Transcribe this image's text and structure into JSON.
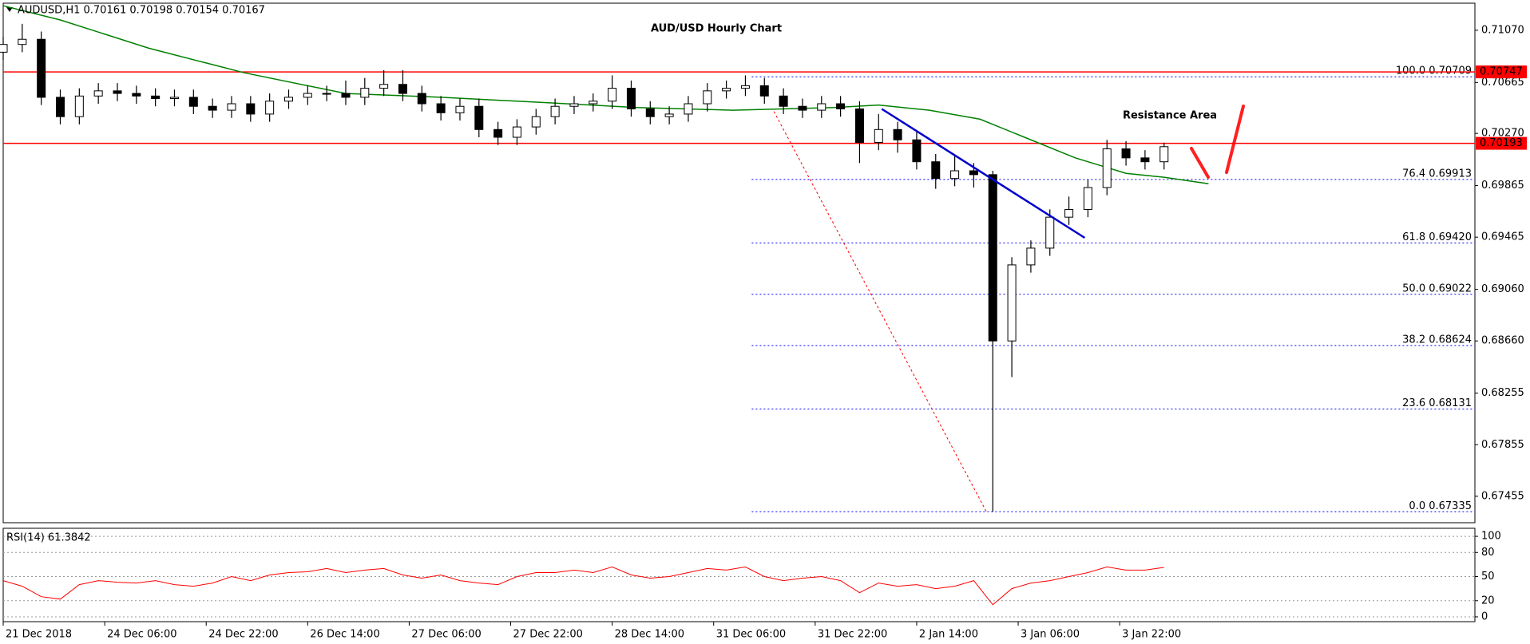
{
  "chart_data": [
    {
      "type": "candlestick",
      "title": "AUD/USD Hourly Chart",
      "subtitle": "AUDUSD,H1  0.70161 0.70198 0.70154 0.70167",
      "annotation": "Resistance Area",
      "up_color": "#ffffff",
      "down_color": "#000000",
      "outline_color": "#000000",
      "x": [
        0,
        3,
        6,
        9,
        12,
        15,
        18,
        21,
        24,
        27,
        30,
        33,
        36,
        39,
        42,
        45,
        48,
        51,
        54,
        57,
        60,
        63,
        66,
        69,
        72,
        75,
        78,
        81,
        84,
        87,
        90,
        93,
        96,
        99,
        102,
        105,
        108,
        111,
        114,
        117,
        120,
        123,
        126,
        129,
        132,
        135,
        138,
        141,
        144,
        147,
        150,
        153,
        156,
        159,
        162,
        165,
        168,
        171,
        174,
        177,
        180,
        183
      ],
      "open": [
        0.709,
        0.7096,
        0.71,
        0.7055,
        0.704,
        0.7056,
        0.706,
        0.7058,
        0.7056,
        0.7054,
        0.7055,
        0.7048,
        0.7045,
        0.705,
        0.7042,
        0.7052,
        0.7055,
        0.7058,
        0.7058,
        0.7055,
        0.7062,
        0.7065,
        0.7058,
        0.705,
        0.7043,
        0.7048,
        0.703,
        0.7024,
        0.7032,
        0.704,
        0.7048,
        0.705,
        0.7052,
        0.7062,
        0.7046,
        0.704,
        0.7042,
        0.705,
        0.706,
        0.7062,
        0.7064,
        0.7056,
        0.7048,
        0.7045,
        0.705,
        0.7046,
        0.702,
        0.703,
        0.7022,
        0.7005,
        0.6992,
        0.6998,
        0.6995,
        0.6866,
        0.6925,
        0.6938,
        0.6962,
        0.6968,
        0.6985,
        0.7015,
        0.7008,
        0.7005
      ],
      "high": [
        0.7102,
        0.7112,
        0.7106,
        0.7061,
        0.7062,
        0.7066,
        0.7066,
        0.7064,
        0.7062,
        0.7061,
        0.7061,
        0.7054,
        0.7056,
        0.7056,
        0.7058,
        0.7061,
        0.7064,
        0.7064,
        0.7068,
        0.707,
        0.7076,
        0.7076,
        0.7064,
        0.7056,
        0.7054,
        0.7054,
        0.7036,
        0.7038,
        0.7046,
        0.7054,
        0.7056,
        0.7058,
        0.7072,
        0.7068,
        0.7052,
        0.7048,
        0.7056,
        0.7066,
        0.7068,
        0.7072,
        0.707,
        0.7062,
        0.7054,
        0.7056,
        0.7056,
        0.7052,
        0.7042,
        0.7036,
        0.7028,
        0.7011,
        0.701,
        0.7004,
        0.6998,
        0.6931,
        0.6944,
        0.6968,
        0.6978,
        0.6991,
        0.7022,
        0.7021,
        0.7014,
        0.70198
      ],
      "low": [
        0.7084,
        0.709,
        0.7049,
        0.7034,
        0.7034,
        0.705,
        0.7052,
        0.705,
        0.7048,
        0.7048,
        0.7042,
        0.7039,
        0.7039,
        0.7036,
        0.7036,
        0.7046,
        0.7049,
        0.7052,
        0.7049,
        0.7049,
        0.7056,
        0.7052,
        0.7044,
        0.7037,
        0.7037,
        0.7024,
        0.7018,
        0.7018,
        0.7026,
        0.7034,
        0.7042,
        0.7044,
        0.7046,
        0.704,
        0.7034,
        0.7034,
        0.7036,
        0.7044,
        0.7054,
        0.7056,
        0.705,
        0.7042,
        0.7039,
        0.7039,
        0.704,
        0.7004,
        0.7014,
        0.7012,
        0.6999,
        0.6984,
        0.6986,
        0.6985,
        0.67335,
        0.6838,
        0.6919,
        0.6932,
        0.6956,
        0.6962,
        0.6979,
        0.7002,
        0.6999,
        0.6999
      ],
      "close": [
        0.7096,
        0.71,
        0.7055,
        0.704,
        0.7056,
        0.706,
        0.7058,
        0.7056,
        0.7054,
        0.7055,
        0.7048,
        0.7045,
        0.705,
        0.7042,
        0.7052,
        0.7055,
        0.7058,
        0.7058,
        0.7055,
        0.7062,
        0.7065,
        0.7058,
        0.705,
        0.7043,
        0.7048,
        0.703,
        0.7024,
        0.7032,
        0.704,
        0.7048,
        0.705,
        0.7052,
        0.7062,
        0.7046,
        0.704,
        0.7042,
        0.705,
        0.706,
        0.7062,
        0.7064,
        0.7056,
        0.7048,
        0.7045,
        0.705,
        0.7046,
        0.702,
        0.703,
        0.7022,
        0.7005,
        0.6992,
        0.6998,
        0.6995,
        0.6866,
        0.6925,
        0.6938,
        0.6962,
        0.6968,
        0.6985,
        0.7015,
        0.7008,
        0.7005,
        0.70167
      ],
      "moving_average": {
        "color": "#008000",
        "x": [
          0,
          9,
          23,
          38,
          54,
          69,
          85,
          100,
          115,
          131,
          138,
          146,
          154,
          161,
          169,
          177,
          183,
          190
        ],
        "values": [
          0.7126,
          0.7115,
          0.7093,
          0.7074,
          0.7058,
          0.7055,
          0.7051,
          0.7047,
          0.7045,
          0.7047,
          0.7049,
          0.7045,
          0.7038,
          0.7024,
          0.7008,
          0.6996,
          0.6993,
          0.6988
        ]
      },
      "levels": [
        {
          "value": 0.70747,
          "color": "#ff0000"
        },
        {
          "value": 0.70193,
          "color": "#ff0000"
        }
      ],
      "fibonacci": {
        "color": "#0000ff",
        "x_start": 118,
        "levels": [
          {
            "value": 0.70709,
            "label": "100.0 0.70709"
          },
          {
            "value": 0.69913,
            "label": "76.4 0.69913"
          },
          {
            "value": 0.6942,
            "label": "61.8 0.69420"
          },
          {
            "value": 0.69022,
            "label": "50.0 0.69022"
          },
          {
            "value": 0.68624,
            "label": "38.2 0.68624"
          },
          {
            "value": 0.68131,
            "label": "23.6 0.68131"
          },
          {
            "value": 0.67335,
            "label": "0.0 0.67335"
          }
        ]
      },
      "trendline": {
        "color": "#0000cd",
        "x": [
          138.5,
          170.5
        ],
        "values": [
          0.7046,
          0.6946
        ]
      },
      "fib_anchor_line": {
        "color": "#ff0000",
        "x": [
          121.5,
          155
        ],
        "values": [
          0.7044,
          0.67335
        ]
      },
      "xlim": [
        0,
        232
      ],
      "ylim": [
        0.6725,
        0.7128
      ],
      "yticks": [
        {
          "value": 0.7107,
          "label": "0.71070"
        },
        0.70665,
        {
          "value": 0.7027,
          "label": "0.70270"
        },
        0.69865,
        0.69465,
        {
          "value": 0.6906,
          "label": "0.69060"
        },
        {
          "value": 0.6866,
          "label": "0.68660"
        },
        0.68255,
        0.67855,
        0.67455
      ],
      "grid": false
    },
    {
      "type": "line",
      "title": "RSI(14) 61.3842",
      "color": "#ff0000",
      "x": [
        0,
        3,
        6,
        9,
        12,
        15,
        18,
        21,
        24,
        27,
        30,
        33,
        36,
        39,
        42,
        45,
        48,
        51,
        54,
        57,
        60,
        63,
        66,
        69,
        72,
        75,
        78,
        81,
        84,
        87,
        90,
        93,
        96,
        99,
        102,
        105,
        108,
        111,
        114,
        117,
        120,
        123,
        126,
        129,
        132,
        135,
        138,
        141,
        144,
        147,
        150,
        153,
        156,
        159,
        162,
        165,
        168,
        171,
        174,
        177,
        180,
        183
      ],
      "values": [
        45,
        38,
        25,
        22,
        40,
        45,
        43,
        42,
        45,
        40,
        38,
        42,
        50,
        45,
        52,
        55,
        56,
        60,
        55,
        58,
        60,
        52,
        48,
        52,
        45,
        42,
        40,
        50,
        55,
        55,
        58,
        55,
        62,
        52,
        48,
        50,
        55,
        60,
        58,
        62,
        50,
        45,
        48,
        50,
        45,
        30,
        42,
        38,
        40,
        35,
        38,
        45,
        15,
        35,
        42,
        45,
        50,
        55,
        62,
        58,
        58,
        61.3842
      ],
      "xlim": [
        0,
        232
      ],
      "ylim": [
        -6,
        110
      ],
      "yticks": [
        100,
        80,
        50,
        20,
        0
      ],
      "grid": true,
      "xticks": [
        {
          "value": 0,
          "label": "21 Dec 2018"
        },
        {
          "value": 16,
          "label": "24 Dec 06:00"
        },
        {
          "value": 32,
          "label": "24 Dec 22:00"
        },
        {
          "value": 48,
          "label": "26 Dec 14:00"
        },
        {
          "value": 64,
          "label": "27 Dec 06:00"
        },
        {
          "value": 80,
          "label": "27 Dec 22:00"
        },
        {
          "value": 96,
          "label": "28 Dec 14:00"
        },
        {
          "value": 112,
          "label": "31 Dec 06:00"
        },
        {
          "value": 128,
          "label": "31 Dec 22:00"
        },
        {
          "value": 144,
          "label": "2 Jan 14:00"
        },
        {
          "value": 160,
          "label": "3 Jan 06:00"
        },
        {
          "value": 176,
          "label": "3 Jan 22:00"
        }
      ]
    }
  ]
}
